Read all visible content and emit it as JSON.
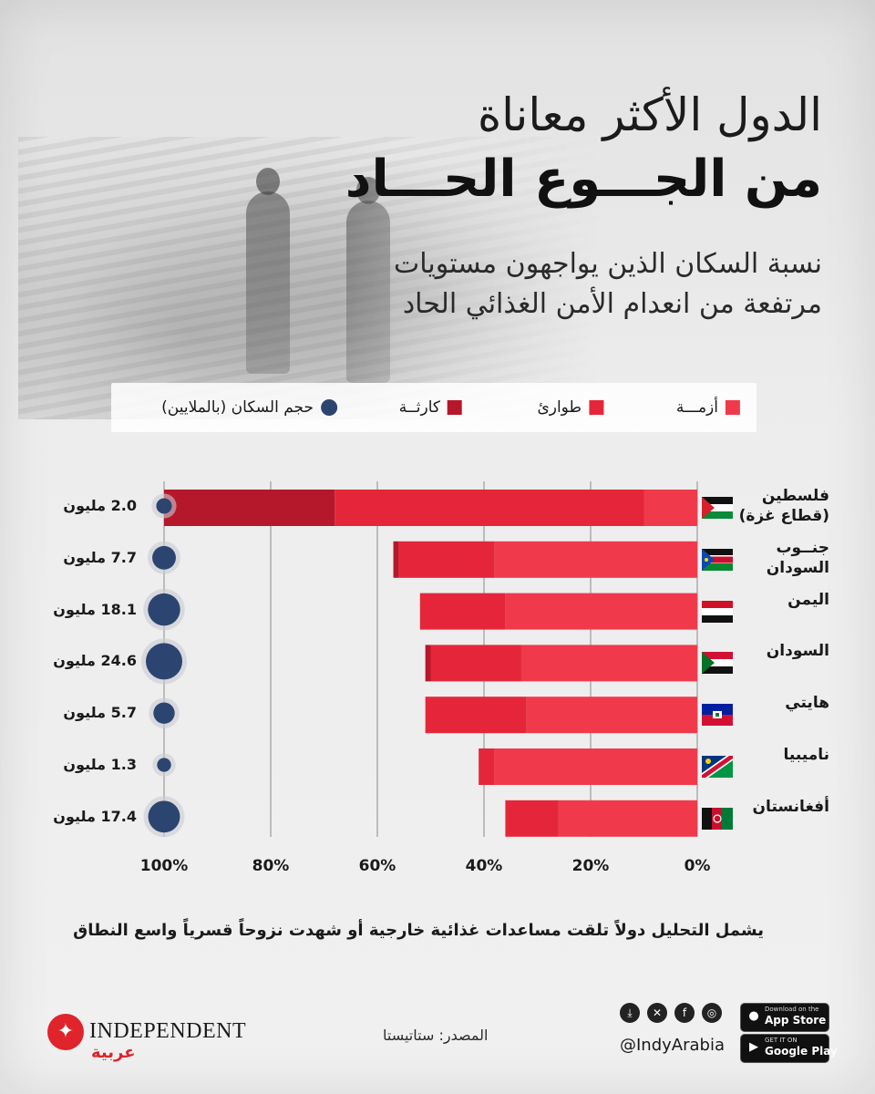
{
  "title_line1": "الدول الأكثر معاناة",
  "title_line2": "من الجـــوع الحـــاد",
  "subtitle_line1": "نسبة السكان الذين يواجهون مستويات",
  "subtitle_line2": "مرتفعة من انعدام الأمن الغذائي الحاد",
  "legend": {
    "crisis": "أزمـــة",
    "emergency": "طوارئ",
    "catastrophe": "كارثــة",
    "population": "حجم السكان (بالملايين)"
  },
  "colors": {
    "crisis": "#f03a4c",
    "emergency": "#e5263a",
    "catastrophe": "#b5182a",
    "population": "#2c4570"
  },
  "countries": [
    {
      "name_line1": "فلسطين",
      "name_line2": "(قطاع غزة)",
      "flag": "palestine-flag",
      "population_label": "2.0 مليون"
    },
    {
      "name_line1": "جنــوب",
      "name_line2": "السودان",
      "flag": "south-sudan-flag",
      "population_label": "7.7 مليون"
    },
    {
      "name_line1": "اليمن",
      "name_line2": "",
      "flag": "yemen-flag",
      "population_label": "18.1 مليون"
    },
    {
      "name_line1": "السودان",
      "name_line2": "",
      "flag": "sudan-flag",
      "population_label": "24.6 مليون"
    },
    {
      "name_line1": "هايتي",
      "name_line2": "",
      "flag": "haiti-flag",
      "population_label": "5.7 مليون"
    },
    {
      "name_line1": "ناميبيا",
      "name_line2": "",
      "flag": "namibia-flag",
      "population_label": "1.3 مليون"
    },
    {
      "name_line1": "أفغانستان",
      "name_line2": "",
      "flag": "afghanistan-flag",
      "population_label": "17.4 مليون"
    }
  ],
  "chart_data": {
    "type": "bar",
    "orientation": "horizontal",
    "stacked": true,
    "direction": "right-to-left",
    "categories": [
      "فلسطين (قطاع غزة)",
      "جنوب السودان",
      "اليمن",
      "السودان",
      "هايتي",
      "ناميبيا",
      "أفغانستان"
    ],
    "series": [
      {
        "name": "أزمـــة",
        "values": [
          10,
          38,
          36,
          33,
          32,
          38,
          26
        ]
      },
      {
        "name": "طوارئ",
        "values": [
          58,
          18,
          16,
          17,
          19,
          3,
          10
        ]
      },
      {
        "name": "كارثــة",
        "values": [
          32,
          1,
          0,
          1,
          0,
          0,
          0
        ]
      }
    ],
    "population_millions": [
      2.0,
      7.7,
      18.1,
      24.6,
      5.7,
      1.3,
      17.4
    ],
    "xlim": [
      0,
      100
    ],
    "xticks": [
      "0%",
      "20%",
      "40%",
      "60%",
      "80%",
      "100%"
    ],
    "grid": true,
    "legend_position": "top"
  },
  "footnote": "يشمل التحليل دولاً تلقت مساعدات غذائية خارجية أو شهدت نزوحاً قسرياً واسع النطاق",
  "source": "المصدر: ستاتيستا",
  "brand": {
    "name": "INDEPENDENT",
    "arabic": "عربية"
  },
  "social_handle": "@IndyArabia",
  "stores": {
    "apple_small": "Download on the",
    "apple_big": "App Store",
    "google_small": "GET IT ON",
    "google_big": "Google Play"
  }
}
